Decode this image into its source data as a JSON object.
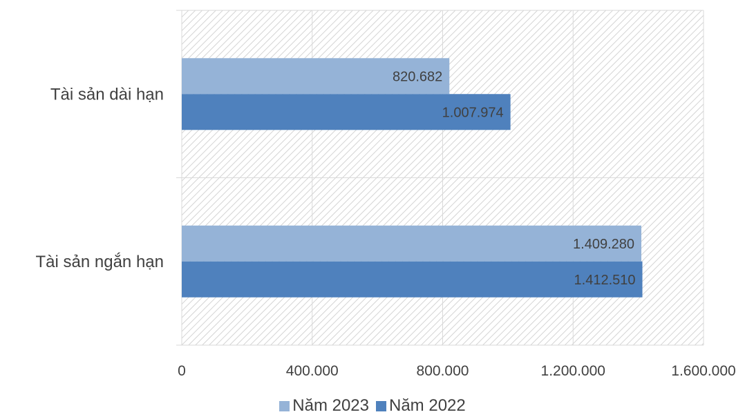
{
  "chart_data": {
    "type": "bar",
    "orientation": "horizontal",
    "categories": [
      "Tài sản dài hạn",
      "Tài sản ngắn hạn"
    ],
    "series": [
      {
        "name": "Năm 2023",
        "values": [
          820682,
          1409280
        ],
        "labels": [
          "820.682",
          "1.409.280"
        ],
        "color": "#95B3D7"
      },
      {
        "name": "Năm 2022",
        "values": [
          1007974,
          1412510
        ],
        "labels": [
          "1.007.974",
          "1.412.510"
        ],
        "color": "#4F81BD"
      }
    ],
    "xlim": [
      0,
      1600000
    ],
    "xticks": [
      0,
      400000,
      800000,
      1200000,
      1600000
    ],
    "xtick_labels": [
      "0",
      "400.000",
      "800.000",
      "1.200.000",
      "1.600.000"
    ],
    "grid": true,
    "plot_background": "hatched",
    "legend_position": "bottom"
  }
}
